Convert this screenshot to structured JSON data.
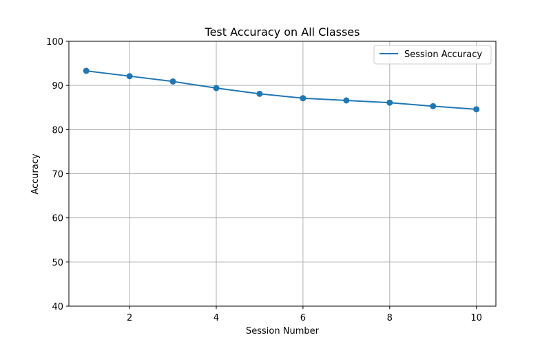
{
  "chart_data": {
    "type": "line",
    "title": "Test Accuracy on All Classes",
    "xlabel": "Session Number",
    "ylabel": "Accuracy",
    "xlim": [
      0.6,
      10.45
    ],
    "ylim": [
      40,
      100
    ],
    "xticks": [
      2,
      4,
      6,
      8,
      10
    ],
    "yticks": [
      40,
      50,
      60,
      70,
      80,
      90,
      100
    ],
    "grid": true,
    "legend_position": "top-right",
    "series": [
      {
        "name": "Session Accuracy",
        "color": "#1f77b4",
        "marker": "circle",
        "x": [
          1,
          2,
          3,
          4,
          5,
          6,
          7,
          8,
          9,
          10
        ],
        "y": [
          93.3,
          92.1,
          90.9,
          89.4,
          88.1,
          87.1,
          86.6,
          86.1,
          85.3,
          84.6
        ]
      }
    ]
  }
}
